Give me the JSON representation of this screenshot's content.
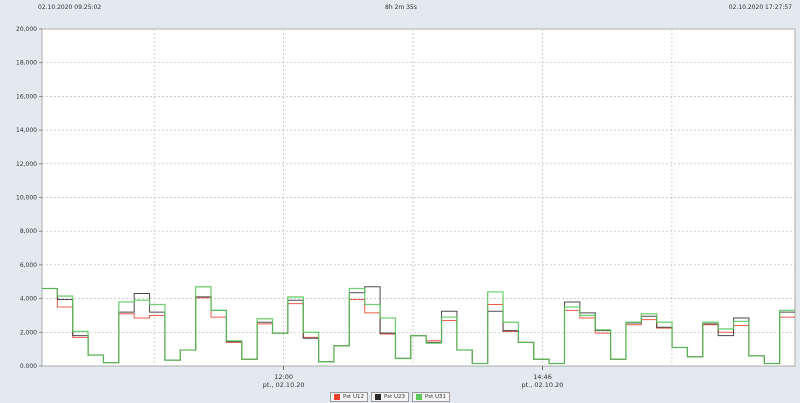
{
  "header": {
    "start": "02.10.2020 09:25:02",
    "duration": "8h 2m 35s",
    "end": "02.10.2020 17:27:57"
  },
  "chart_data": {
    "type": "line",
    "step": true,
    "time_range": [
      "02.10.2020 09:25:02",
      "02.10.2020 17:27:57"
    ],
    "x_ticks": [
      {
        "time": "12:00",
        "label": "12:00",
        "sublabel": "pt., 02.10.20"
      },
      {
        "time": "14:46",
        "label": "14:46",
        "sublabel": "pt., 02.10.20"
      }
    ],
    "y_ticks": [
      "0.000",
      "2,000",
      "4,000",
      "6,000",
      "8,000",
      "10,000",
      "12,000",
      "14,000",
      "16,000",
      "18,000",
      "20,000"
    ],
    "ylim": [
      0,
      20
    ],
    "grid": true,
    "legend_position": "bottom",
    "series": [
      {
        "name": "Pst U12",
        "color": "#e8402a",
        "values": [
          4.6,
          3.5,
          1.7,
          0.65,
          0.2,
          3.1,
          2.85,
          3.0,
          0.35,
          0.95,
          4.05,
          2.9,
          1.4,
          0.4,
          2.5,
          1.95,
          3.7,
          1.7,
          0.25,
          1.2,
          3.95,
          3.15,
          1.9,
          0.45,
          1.8,
          1.5,
          2.7,
          0.95,
          0.15,
          3.65,
          2.05,
          1.4,
          0.4,
          0.15,
          3.3,
          2.85,
          1.95,
          0.4,
          2.45,
          2.75,
          2.25,
          1.1,
          0.55,
          2.45,
          2.0,
          2.4,
          0.6,
          0.15,
          2.9
        ]
      },
      {
        "name": "Pst U23",
        "color": "#2b2b2b",
        "values": [
          4.6,
          3.95,
          1.8,
          0.65,
          0.2,
          3.2,
          4.3,
          3.2,
          0.35,
          0.95,
          4.1,
          3.3,
          1.45,
          0.4,
          2.6,
          1.95,
          3.9,
          1.65,
          0.25,
          1.2,
          4.35,
          4.7,
          1.95,
          0.45,
          1.8,
          1.4,
          3.25,
          0.95,
          0.15,
          3.25,
          2.1,
          1.4,
          0.4,
          0.15,
          3.8,
          3.15,
          2.1,
          0.4,
          2.55,
          2.95,
          2.3,
          1.1,
          0.55,
          2.5,
          1.8,
          2.85,
          0.6,
          0.15,
          3.2
        ]
      },
      {
        "name": "Pst U31",
        "color": "#5cc85c",
        "values": [
          4.6,
          4.15,
          2.05,
          0.65,
          0.2,
          3.8,
          3.9,
          3.65,
          0.35,
          0.95,
          4.7,
          3.3,
          1.5,
          0.4,
          2.8,
          1.95,
          4.1,
          2.0,
          0.25,
          1.2,
          4.6,
          3.65,
          2.85,
          0.45,
          1.8,
          1.35,
          2.9,
          0.95,
          0.15,
          4.4,
          2.6,
          1.4,
          0.4,
          0.15,
          3.5,
          3.0,
          2.15,
          0.4,
          2.6,
          3.1,
          2.6,
          1.1,
          0.55,
          2.6,
          2.2,
          2.65,
          0.6,
          0.15,
          3.3
        ]
      }
    ]
  }
}
